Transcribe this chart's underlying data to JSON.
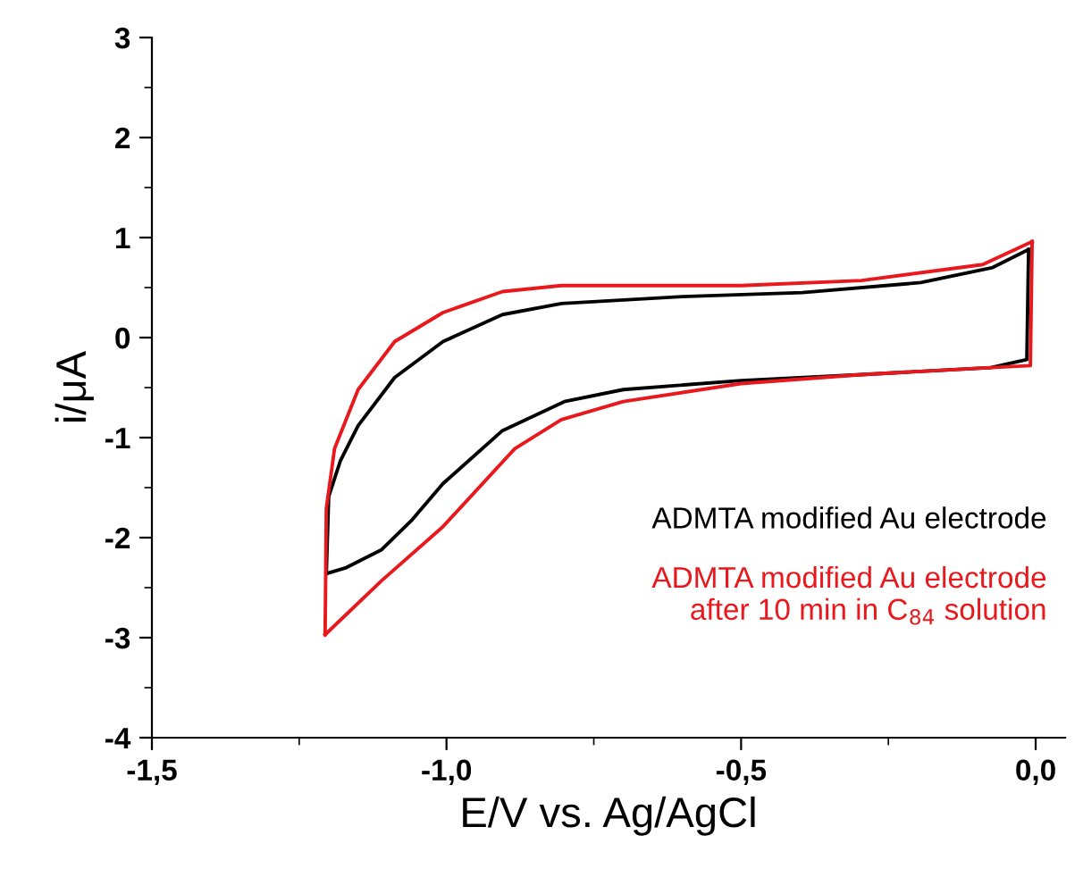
{
  "chart_data": {
    "type": "line",
    "xlabel": "E/V vs. Ag/AgCl",
    "ylabel": "i/μA",
    "xlim": [
      -1.5,
      0.05
    ],
    "ylim": [
      -4,
      3
    ],
    "xticks": [
      {
        "value": -1.5,
        "label": "-1,5"
      },
      {
        "value": -1.0,
        "label": "-1,0"
      },
      {
        "value": -0.5,
        "label": "-0,5"
      },
      {
        "value": 0.0,
        "label": "0,0"
      }
    ],
    "yticks": [
      -4,
      -3,
      -2,
      -1,
      0,
      1,
      2,
      3
    ],
    "grid": false,
    "legend": false,
    "marker": "none",
    "line_style": "solid",
    "series": [
      {
        "name": "ADMTA modified Au electrode",
        "color": "#000000",
        "x": [
          -0.012,
          -0.015,
          -0.076,
          -0.296,
          -0.5,
          -0.7,
          -0.8,
          -0.905,
          -1.006,
          -1.058,
          -1.11,
          -1.17,
          -1.204
        ],
        "values": [
          0.88,
          -0.22,
          -0.3,
          -0.37,
          -0.43,
          -0.52,
          -0.64,
          -0.93,
          -1.46,
          -1.82,
          -2.12,
          -2.3,
          -2.36
        ]
      },
      {
        "color": "#000000",
        "x": [
          -1.204,
          -1.2,
          -1.18,
          -1.15,
          -1.088,
          -1.006,
          -0.905,
          -0.805,
          -0.6,
          -0.396,
          -0.195,
          -0.073,
          -0.012
        ],
        "values": [
          -2.36,
          -1.59,
          -1.23,
          -0.88,
          -0.4,
          -0.04,
          0.23,
          0.34,
          0.41,
          0.45,
          0.55,
          0.7,
          0.88
        ]
      },
      {
        "name": "ADMTA modified Au electrode\nafter 10 min in C$_{84}$ solution",
        "color": "#e8181c",
        "x": [
          -0.006,
          -0.009,
          -0.076,
          -0.296,
          -0.5,
          -0.7,
          -0.805,
          -0.884,
          -1.006,
          -1.11,
          -1.206
        ],
        "values": [
          0.96,
          -0.28,
          -0.3,
          -0.37,
          -0.46,
          -0.64,
          -0.82,
          -1.11,
          -1.89,
          -2.43,
          -2.97
        ]
      },
      {
        "color": "#e8181c",
        "x": [
          -1.206,
          -1.204,
          -1.19,
          -1.15,
          -1.088,
          -1.006,
          -0.905,
          -0.805,
          -0.5,
          -0.296,
          -0.09,
          -0.006
        ],
        "values": [
          -2.97,
          -1.71,
          -1.11,
          -0.52,
          -0.04,
          0.25,
          0.46,
          0.52,
          0.52,
          0.57,
          0.73,
          0.96
        ]
      }
    ]
  }
}
